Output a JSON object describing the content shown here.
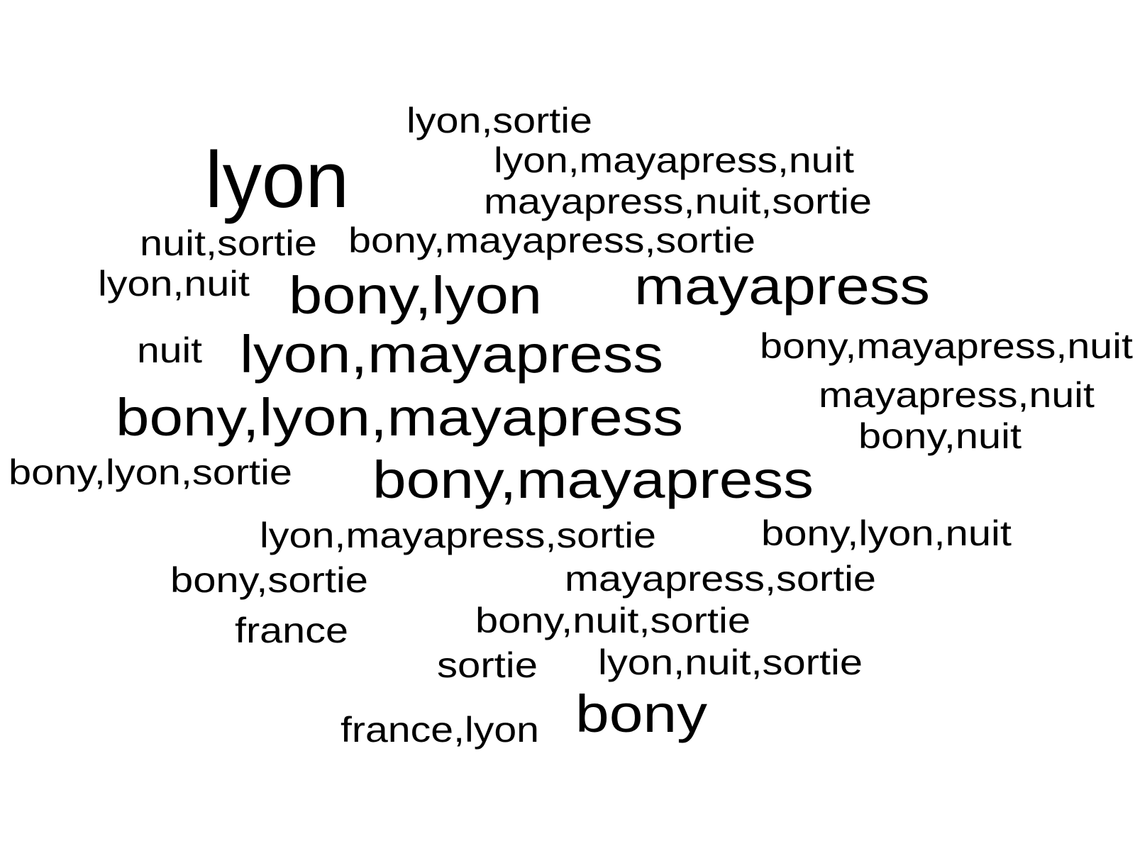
{
  "word_cloud": {
    "text_color": "#000000",
    "background_color": "#ffffff",
    "words": [
      {
        "text": "lyon,sortie"
      },
      {
        "text": "lyon"
      },
      {
        "text": "lyon,mayapress,nuit"
      },
      {
        "text": "mayapress,nuit,sortie"
      },
      {
        "text": "nuit,sortie"
      },
      {
        "text": "bony,mayapress,sortie"
      },
      {
        "text": "lyon,nuit"
      },
      {
        "text": "bony,lyon"
      },
      {
        "text": "mayapress"
      },
      {
        "text": "nuit"
      },
      {
        "text": "lyon,mayapress"
      },
      {
        "text": "bony,mayapress,nuit"
      },
      {
        "text": "bony,lyon,mayapress"
      },
      {
        "text": "mayapress,nuit"
      },
      {
        "text": "bony,nuit"
      },
      {
        "text": "bony,lyon,sortie"
      },
      {
        "text": "bony,mayapress"
      },
      {
        "text": "lyon,mayapress,sortie"
      },
      {
        "text": "bony,lyon,nuit"
      },
      {
        "text": "bony,sortie"
      },
      {
        "text": "mayapress,sortie"
      },
      {
        "text": "france"
      },
      {
        "text": "bony,nuit,sortie"
      },
      {
        "text": "sortie"
      },
      {
        "text": "lyon,nuit,sortie"
      },
      {
        "text": "france,lyon"
      },
      {
        "text": "bony"
      }
    ]
  }
}
